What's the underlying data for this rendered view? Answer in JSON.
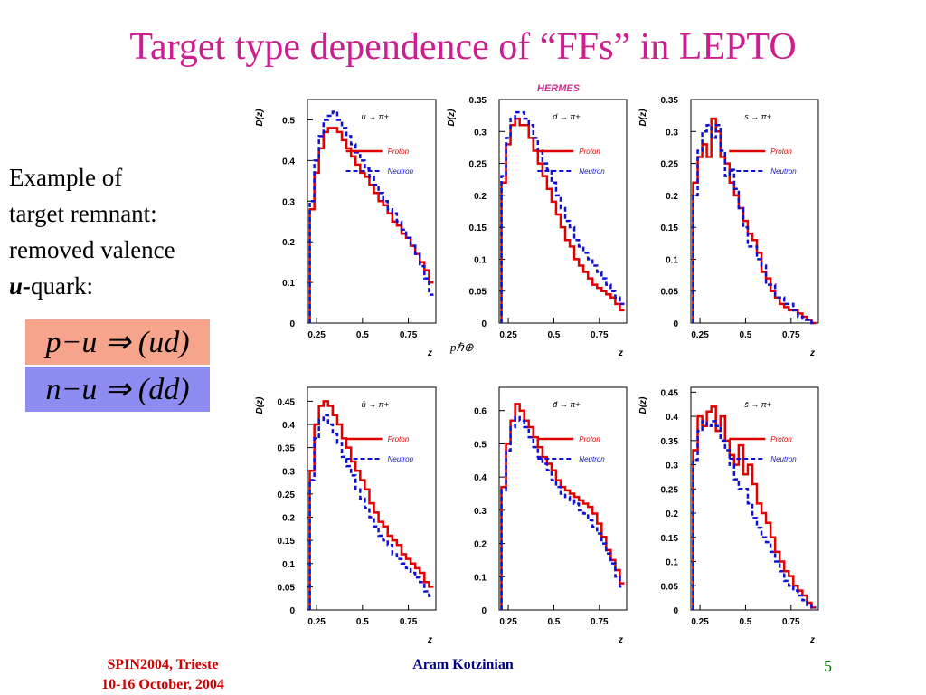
{
  "slide": {
    "title": "Target type dependence of “FFs” in LEPTO",
    "hermes_label": "HERMES",
    "stray_text": "pℏ⊕",
    "explanation": {
      "line1": "Example of",
      "line2": "target remnant:",
      "line3": "removed valence",
      "line4_bold": "u-",
      "line4_rest": "quark:"
    },
    "equations": [
      "p−u ⇒ (ud)",
      "n−u ⇒ (dd)"
    ],
    "footer": {
      "conference": "SPIN2004, Trieste",
      "dates": "10-16 October, 2004",
      "author": "Aram Kotzinian",
      "page": "5"
    }
  },
  "colors": {
    "title": "#cc1f8f",
    "proton": "#e00000",
    "neutron": "#1010d0",
    "eq1_bg": "#f7a48c",
    "eq2_bg": "#8c8cf2"
  },
  "chart_data": [
    {
      "type": "line",
      "process": "u → π+",
      "ylabel": "D(z)",
      "xlabel": "z",
      "xlim": [
        0.2,
        0.9
      ],
      "ylim": [
        0,
        0.55
      ],
      "xticks": [
        "0.25",
        "0.5",
        "0.75"
      ],
      "xtick_values": [
        0.25,
        0.5,
        0.75
      ],
      "yticks": [
        "0",
        "0.1",
        "0.2",
        "0.3",
        "0.4",
        "0.5"
      ],
      "ytick_values": [
        0,
        0.1,
        0.2,
        0.3,
        0.4,
        0.5
      ],
      "legend": [
        "Proton",
        "Neutron"
      ],
      "z": [
        0.225,
        0.25,
        0.275,
        0.3,
        0.325,
        0.35,
        0.375,
        0.4,
        0.425,
        0.45,
        0.475,
        0.5,
        0.525,
        0.55,
        0.575,
        0.6,
        0.625,
        0.65,
        0.675,
        0.7,
        0.725,
        0.75,
        0.775,
        0.8,
        0.825,
        0.85,
        0.875
      ],
      "series": [
        {
          "name": "Proton",
          "values": [
            0.28,
            0.37,
            0.43,
            0.47,
            0.48,
            0.48,
            0.47,
            0.45,
            0.43,
            0.41,
            0.39,
            0.37,
            0.36,
            0.34,
            0.32,
            0.3,
            0.29,
            0.27,
            0.25,
            0.24,
            0.22,
            0.21,
            0.19,
            0.17,
            0.15,
            0.13,
            0.1
          ]
        },
        {
          "name": "Neutron",
          "values": [
            0.3,
            0.4,
            0.46,
            0.5,
            0.51,
            0.52,
            0.5,
            0.48,
            0.46,
            0.44,
            0.42,
            0.4,
            0.38,
            0.36,
            0.34,
            0.32,
            0.3,
            0.28,
            0.27,
            0.25,
            0.23,
            0.21,
            0.19,
            0.17,
            0.14,
            0.11,
            0.07
          ]
        }
      ]
    },
    {
      "type": "line",
      "process": "d → π+",
      "ylabel": "D(z)",
      "xlabel": "z",
      "xlim": [
        0.2,
        0.9
      ],
      "ylim": [
        0,
        0.35
      ],
      "xticks": [
        "0.25",
        "0.5",
        "0.75"
      ],
      "xtick_values": [
        0.25,
        0.5,
        0.75
      ],
      "yticks": [
        "0",
        "0.05",
        "0.1",
        "0.15",
        "0.2",
        "0.25",
        "0.3",
        "0.35"
      ],
      "ytick_values": [
        0,
        0.05,
        0.1,
        0.15,
        0.2,
        0.25,
        0.3,
        0.35
      ],
      "legend": [
        "Proton",
        "Neutron"
      ],
      "z": [
        0.225,
        0.25,
        0.275,
        0.3,
        0.325,
        0.35,
        0.375,
        0.4,
        0.425,
        0.45,
        0.475,
        0.5,
        0.525,
        0.55,
        0.575,
        0.6,
        0.625,
        0.65,
        0.675,
        0.7,
        0.725,
        0.75,
        0.775,
        0.8,
        0.825,
        0.85,
        0.875
      ],
      "series": [
        {
          "name": "Proton",
          "values": [
            0.22,
            0.28,
            0.31,
            0.32,
            0.31,
            0.31,
            0.29,
            0.27,
            0.25,
            0.23,
            0.21,
            0.19,
            0.17,
            0.15,
            0.13,
            0.12,
            0.1,
            0.09,
            0.08,
            0.07,
            0.06,
            0.055,
            0.05,
            0.045,
            0.04,
            0.03,
            0.02
          ]
        },
        {
          "name": "Neutron",
          "values": [
            0.23,
            0.29,
            0.32,
            0.33,
            0.33,
            0.32,
            0.31,
            0.29,
            0.27,
            0.25,
            0.24,
            0.22,
            0.2,
            0.18,
            0.16,
            0.15,
            0.13,
            0.12,
            0.11,
            0.1,
            0.09,
            0.08,
            0.07,
            0.06,
            0.05,
            0.04,
            0.03
          ]
        }
      ]
    },
    {
      "type": "line",
      "process": "s → π+",
      "ylabel": "D(z)",
      "xlabel": "z",
      "xlim": [
        0.2,
        0.9
      ],
      "ylim": [
        0,
        0.35
      ],
      "xticks": [
        "0.25",
        "0.5",
        "0.75"
      ],
      "xtick_values": [
        0.25,
        0.5,
        0.75
      ],
      "yticks": [
        "0",
        "0.05",
        "0.1",
        "0.15",
        "0.2",
        "0.25",
        "0.3",
        "0.35"
      ],
      "ytick_values": [
        0,
        0.05,
        0.1,
        0.15,
        0.2,
        0.25,
        0.3,
        0.35
      ],
      "legend": [
        "Proton",
        "Neutron"
      ],
      "z": [
        0.225,
        0.25,
        0.275,
        0.3,
        0.325,
        0.35,
        0.375,
        0.4,
        0.425,
        0.45,
        0.475,
        0.5,
        0.525,
        0.55,
        0.575,
        0.6,
        0.625,
        0.65,
        0.675,
        0.7,
        0.725,
        0.75,
        0.775,
        0.8,
        0.825,
        0.85,
        0.875
      ],
      "series": [
        {
          "name": "Proton",
          "values": [
            0.22,
            0.26,
            0.28,
            0.26,
            0.32,
            0.3,
            0.26,
            0.25,
            0.22,
            0.2,
            0.18,
            0.16,
            0.14,
            0.13,
            0.11,
            0.08,
            0.07,
            0.05,
            0.04,
            0.03,
            0.025,
            0.02,
            0.02,
            0.015,
            0.01,
            0.005,
            0.0
          ]
        },
        {
          "name": "Neutron",
          "values": [
            0.2,
            0.27,
            0.3,
            0.31,
            0.29,
            0.31,
            0.27,
            0.23,
            0.24,
            0.21,
            0.18,
            0.15,
            0.12,
            0.12,
            0.1,
            0.09,
            0.06,
            0.06,
            0.04,
            0.04,
            0.03,
            0.03,
            0.02,
            0.01,
            0.005,
            0.005,
            0.0
          ]
        }
      ]
    },
    {
      "type": "line",
      "process": "ū → π+",
      "ylabel": "D(z)",
      "xlabel": "z",
      "xlim": [
        0.2,
        0.9
      ],
      "ylim": [
        0,
        0.48
      ],
      "xticks": [
        "0.25",
        "0.5",
        "0.75"
      ],
      "xtick_values": [
        0.25,
        0.5,
        0.75
      ],
      "yticks": [
        "0",
        "0.05",
        "0.1",
        "0.15",
        "0.2",
        "0.25",
        "0.3",
        "0.35",
        "0.4",
        "0.45"
      ],
      "ytick_values": [
        0,
        0.05,
        0.1,
        0.15,
        0.2,
        0.25,
        0.3,
        0.35,
        0.4,
        0.45
      ],
      "legend": [
        "Proton",
        "Neutron"
      ],
      "z": [
        0.225,
        0.25,
        0.275,
        0.3,
        0.325,
        0.35,
        0.375,
        0.4,
        0.425,
        0.45,
        0.475,
        0.5,
        0.525,
        0.55,
        0.575,
        0.6,
        0.625,
        0.65,
        0.675,
        0.7,
        0.725,
        0.75,
        0.775,
        0.8,
        0.825,
        0.85,
        0.875
      ],
      "series": [
        {
          "name": "Proton",
          "values": [
            0.3,
            0.4,
            0.44,
            0.45,
            0.44,
            0.42,
            0.4,
            0.37,
            0.35,
            0.32,
            0.3,
            0.28,
            0.26,
            0.23,
            0.21,
            0.19,
            0.18,
            0.16,
            0.15,
            0.14,
            0.12,
            0.11,
            0.1,
            0.09,
            0.08,
            0.06,
            0.05
          ]
        },
        {
          "name": "Neutron",
          "values": [
            0.28,
            0.37,
            0.41,
            0.42,
            0.4,
            0.38,
            0.36,
            0.33,
            0.31,
            0.29,
            0.26,
            0.24,
            0.22,
            0.2,
            0.18,
            0.16,
            0.15,
            0.14,
            0.12,
            0.11,
            0.1,
            0.09,
            0.08,
            0.07,
            0.06,
            0.04,
            0.03
          ]
        }
      ]
    },
    {
      "type": "line",
      "process": "d̄ → π+",
      "ylabel": "",
      "xlabel": "z",
      "xlim": [
        0.2,
        0.9
      ],
      "ylim": [
        0,
        0.67
      ],
      "xticks": [
        "0.25",
        "0.5",
        "0.75"
      ],
      "xtick_values": [
        0.25,
        0.5,
        0.75
      ],
      "yticks": [
        "0",
        "0.1",
        "0.2",
        "0.3",
        "0.4",
        "0.5",
        "0.6"
      ],
      "ytick_values": [
        0,
        0.1,
        0.2,
        0.3,
        0.4,
        0.5,
        0.6
      ],
      "legend": [
        "Proton",
        "Neutron"
      ],
      "z": [
        0.225,
        0.25,
        0.275,
        0.3,
        0.325,
        0.35,
        0.375,
        0.4,
        0.425,
        0.45,
        0.475,
        0.5,
        0.525,
        0.55,
        0.575,
        0.6,
        0.625,
        0.65,
        0.675,
        0.7,
        0.725,
        0.75,
        0.775,
        0.8,
        0.825,
        0.85,
        0.875
      ],
      "series": [
        {
          "name": "Proton",
          "values": [
            0.37,
            0.5,
            0.57,
            0.62,
            0.6,
            0.57,
            0.55,
            0.52,
            0.49,
            0.46,
            0.44,
            0.42,
            0.39,
            0.37,
            0.36,
            0.35,
            0.34,
            0.33,
            0.32,
            0.31,
            0.29,
            0.26,
            0.22,
            0.18,
            0.15,
            0.12,
            0.08
          ]
        },
        {
          "name": "Neutron",
          "values": [
            0.36,
            0.48,
            0.55,
            0.58,
            0.57,
            0.55,
            0.52,
            0.49,
            0.46,
            0.44,
            0.42,
            0.39,
            0.37,
            0.35,
            0.34,
            0.33,
            0.32,
            0.3,
            0.29,
            0.27,
            0.25,
            0.23,
            0.2,
            0.17,
            0.14,
            0.1,
            0.07
          ]
        }
      ]
    },
    {
      "type": "line",
      "process": "s̄ → π+",
      "ylabel": "D(z)",
      "xlabel": "z",
      "xlim": [
        0.2,
        0.9
      ],
      "ylim": [
        0,
        0.46
      ],
      "xticks": [
        "0.25",
        "0.5",
        "0.75"
      ],
      "xtick_values": [
        0.25,
        0.5,
        0.75
      ],
      "yticks": [
        "0",
        "0.05",
        "0.1",
        "0.15",
        "0.2",
        "0.25",
        "0.3",
        "0.35",
        "0.4",
        "0.45"
      ],
      "ytick_values": [
        0,
        0.05,
        0.1,
        0.15,
        0.2,
        0.25,
        0.3,
        0.35,
        0.4,
        0.45
      ],
      "legend": [
        "Proton",
        "Neutron"
      ],
      "z": [
        0.225,
        0.25,
        0.275,
        0.3,
        0.325,
        0.35,
        0.375,
        0.4,
        0.425,
        0.45,
        0.475,
        0.5,
        0.525,
        0.55,
        0.575,
        0.6,
        0.625,
        0.65,
        0.675,
        0.7,
        0.725,
        0.75,
        0.775,
        0.8,
        0.825,
        0.85,
        0.875
      ],
      "series": [
        {
          "name": "Proton",
          "values": [
            0.33,
            0.4,
            0.38,
            0.41,
            0.42,
            0.37,
            0.4,
            0.35,
            0.32,
            0.3,
            0.34,
            0.28,
            0.3,
            0.26,
            0.22,
            0.2,
            0.18,
            0.15,
            0.12,
            0.1,
            0.08,
            0.07,
            0.05,
            0.04,
            0.03,
            0.015,
            0.005
          ]
        },
        {
          "name": "Neutron",
          "values": [
            0.31,
            0.37,
            0.39,
            0.38,
            0.39,
            0.38,
            0.35,
            0.33,
            0.3,
            0.27,
            0.25,
            0.25,
            0.22,
            0.19,
            0.17,
            0.15,
            0.14,
            0.12,
            0.1,
            0.08,
            0.06,
            0.05,
            0.04,
            0.03,
            0.02,
            0.01,
            0.005
          ]
        }
      ]
    }
  ]
}
